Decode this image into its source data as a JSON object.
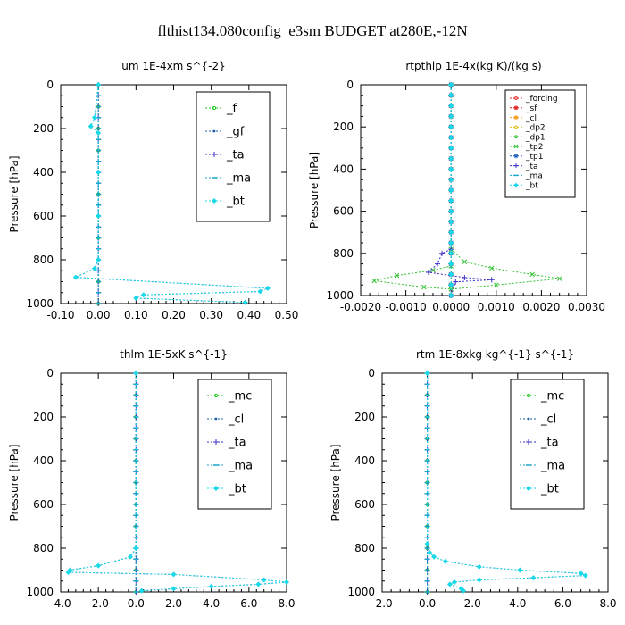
{
  "suptitle": "flthist134.080config_e3sm  BUDGET at280E,-12N",
  "chart_data": [
    {
      "type": "line",
      "title": "um  1E-4xm s^{-2}",
      "ylabel": "Pressure [hPa]",
      "xlim": [
        -0.1,
        0.5
      ],
      "ylim": [
        1000,
        0
      ],
      "xticks": [
        "-0.10",
        "0.00",
        "0.10",
        "0.20",
        "0.30",
        "0.40",
        "0.50"
      ],
      "yticks": [
        "0",
        "200",
        "400",
        "600",
        "800",
        "1000"
      ],
      "legend_size": "large",
      "series": [
        {
          "name": "_f",
          "color": "#22c922",
          "marker": "circle",
          "points": [
            [
              0,
              0
            ],
            [
              0,
              100
            ],
            [
              0,
              200
            ],
            [
              0,
              300
            ],
            [
              0,
              400
            ],
            [
              0,
              500
            ],
            [
              0,
              600
            ],
            [
              0,
              700
            ],
            [
              0,
              800
            ],
            [
              0,
              900
            ],
            [
              0,
              1000
            ]
          ]
        },
        {
          "name": "_gf",
          "color": "#1a5fa8",
          "marker": "dot",
          "points": [
            [
              0,
              0
            ],
            [
              -0.01,
              150
            ],
            [
              -0.02,
              190
            ],
            [
              0,
              220
            ],
            [
              0,
              400
            ],
            [
              0,
              600
            ],
            [
              0,
              800
            ],
            [
              -0.01,
              840
            ],
            [
              -0.06,
              880
            ],
            [
              0.45,
              930
            ],
            [
              0.43,
              945
            ],
            [
              0.12,
              960
            ],
            [
              0.1,
              975
            ],
            [
              0.39,
              995
            ]
          ]
        },
        {
          "name": "_ta",
          "color": "#3a2fc8",
          "marker": "plus",
          "points": [
            [
              0,
              0
            ],
            [
              0,
              1000
            ]
          ]
        },
        {
          "name": "_ma",
          "color": "#17a6c9",
          "marker": "dash",
          "points": [
            [
              0,
              0
            ],
            [
              0,
              1000
            ]
          ]
        },
        {
          "name": "_bt",
          "color": "#19d8e8",
          "marker": "diamond",
          "points": [
            [
              0,
              0
            ],
            [
              -0.01,
              150
            ],
            [
              -0.02,
              190
            ],
            [
              0,
              220
            ],
            [
              0,
              400
            ],
            [
              0,
              600
            ],
            [
              0,
              800
            ],
            [
              -0.01,
              840
            ],
            [
              -0.06,
              880
            ],
            [
              0.45,
              930
            ],
            [
              0.43,
              945
            ],
            [
              0.12,
              960
            ],
            [
              0.1,
              975
            ],
            [
              0.39,
              995
            ]
          ]
        }
      ]
    },
    {
      "type": "line",
      "title": "rtpthlp  1E-4x(kg K)/(kg s)",
      "ylabel": "Pressure [hPa]",
      "xlim": [
        -0.002,
        0.003
      ],
      "ylim": [
        1000,
        0
      ],
      "xticks": [
        "-0.0020",
        "-0.0010",
        "0.0000",
        "0.0010",
        "0.0020",
        "0.0030"
      ],
      "yticks": [
        "0",
        "200",
        "400",
        "600",
        "800",
        "1000"
      ],
      "legend_size": "small",
      "series": [
        {
          "name": "_forcing",
          "color": "#e02020",
          "marker": "circle",
          "points": [
            [
              0,
              0
            ],
            [
              0,
              1000
            ]
          ]
        },
        {
          "name": "_sf",
          "color": "#e02020",
          "marker": "star",
          "points": [
            [
              0,
              0
            ],
            [
              0,
              1000
            ]
          ]
        },
        {
          "name": "_cl",
          "color": "#f0a020",
          "marker": "star",
          "points": [
            [
              0,
              0
            ],
            [
              0,
              1000
            ]
          ]
        },
        {
          "name": "_dp2",
          "color": "#e0c020",
          "marker": "circle",
          "points": [
            [
              0,
              0
            ],
            [
              0,
              1000
            ]
          ]
        },
        {
          "name": "_dp1",
          "color": "#30c030",
          "marker": "circle",
          "points": [
            [
              0,
              0
            ],
            [
              0,
              1000
            ]
          ]
        },
        {
          "name": "_tp2",
          "color": "#30c030",
          "marker": "cross",
          "points": [
            [
              0,
              0
            ],
            [
              0,
              780
            ],
            [
              0.0003,
              840
            ],
            [
              0.0009,
              870
            ],
            [
              0.0018,
              900
            ],
            [
              0.0024,
              920
            ],
            [
              0.001,
              950
            ],
            [
              0,
              970
            ],
            [
              -0.0006,
              960
            ],
            [
              -0.0017,
              930
            ],
            [
              -0.0012,
              905
            ],
            [
              -0.0004,
              880
            ],
            [
              0,
              860
            ]
          ]
        },
        {
          "name": "_tp1",
          "color": "#2060c0",
          "marker": "star",
          "points": [
            [
              0,
              0
            ],
            [
              0,
              1000
            ]
          ]
        },
        {
          "name": "_ta",
          "color": "#3a2fc8",
          "marker": "plus",
          "points": [
            [
              0,
              0
            ],
            [
              0,
              780
            ],
            [
              -0.0002,
              800
            ],
            [
              -0.0003,
              850
            ],
            [
              -0.0005,
              890
            ],
            [
              0.0003,
              915
            ],
            [
              0.0009,
              925
            ],
            [
              0.0001,
              935
            ],
            [
              0,
              1000
            ]
          ]
        },
        {
          "name": "_ma",
          "color": "#17a6c9",
          "marker": "dash",
          "points": [
            [
              0,
              0
            ],
            [
              0,
              1000
            ]
          ]
        },
        {
          "name": "_bt",
          "color": "#19d8e8",
          "marker": "diamond",
          "points": [
            [
              0,
              0
            ],
            [
              0,
              1000
            ]
          ]
        }
      ]
    },
    {
      "type": "line",
      "title": "thlm  1E-5xK s^{-1}",
      "ylabel": "Pressure [hPa]",
      "xlim": [
        -4.0,
        8.0
      ],
      "ylim": [
        1000,
        0
      ],
      "xticks": [
        "-4.0",
        "-2.0",
        "0.0",
        "2.0",
        "4.0",
        "6.0",
        "8.0"
      ],
      "yticks": [
        "0",
        "200",
        "400",
        "600",
        "800",
        "1000"
      ],
      "legend_size": "large",
      "series": [
        {
          "name": "_mc",
          "color": "#22c922",
          "marker": "circle",
          "points": [
            [
              0,
              0
            ],
            [
              0,
              100
            ],
            [
              0,
              200
            ],
            [
              0,
              300
            ],
            [
              0,
              400
            ],
            [
              0,
              500
            ],
            [
              0,
              600
            ],
            [
              0,
              700
            ],
            [
              0,
              800
            ],
            [
              0,
              900
            ],
            [
              0,
              1000
            ]
          ]
        },
        {
          "name": "_cl",
          "color": "#1a5fa8",
          "marker": "dot",
          "points": [
            [
              0,
              0
            ],
            [
              0,
              800
            ],
            [
              -0.3,
              840
            ],
            [
              -2.0,
              880
            ],
            [
              -3.5,
              900
            ],
            [
              -3.6,
              910
            ],
            [
              2.0,
              920
            ],
            [
              6.8,
              945
            ],
            [
              8.0,
              955
            ],
            [
              6.5,
              965
            ],
            [
              4.0,
              975
            ],
            [
              2.0,
              985
            ],
            [
              0.3,
              995
            ]
          ]
        },
        {
          "name": "_ta",
          "color": "#3a2fc8",
          "marker": "plus",
          "points": [
            [
              0,
              0
            ],
            [
              0,
              1000
            ]
          ]
        },
        {
          "name": "_ma",
          "color": "#17a6c9",
          "marker": "dash",
          "points": [
            [
              0,
              0
            ],
            [
              0,
              1000
            ]
          ]
        },
        {
          "name": "_bt",
          "color": "#19d8e8",
          "marker": "diamond",
          "points": [
            [
              0,
              0
            ],
            [
              0,
              800
            ],
            [
              -0.3,
              840
            ],
            [
              -2.0,
              880
            ],
            [
              -3.5,
              900
            ],
            [
              -3.6,
              910
            ],
            [
              2.0,
              920
            ],
            [
              6.8,
              945
            ],
            [
              8.0,
              955
            ],
            [
              6.5,
              965
            ],
            [
              4.0,
              975
            ],
            [
              2.0,
              985
            ],
            [
              0.3,
              995
            ]
          ]
        }
      ]
    },
    {
      "type": "line",
      "title": "rtm  1E-8xkg kg^{-1} s^{-1}",
      "ylabel": "Pressure [hPa]",
      "xlim": [
        -2.0,
        8.0
      ],
      "ylim": [
        1000,
        0
      ],
      "xticks": [
        "-2.0",
        "0.0",
        "2.0",
        "4.0",
        "6.0",
        "8.0"
      ],
      "yticks": [
        "0",
        "200",
        "400",
        "600",
        "800",
        "1000"
      ],
      "legend_size": "large",
      "series": [
        {
          "name": "_mc",
          "color": "#22c922",
          "marker": "circle",
          "points": [
            [
              0,
              0
            ],
            [
              0,
              100
            ],
            [
              0,
              200
            ],
            [
              0,
              300
            ],
            [
              0,
              400
            ],
            [
              0,
              500
            ],
            [
              0,
              600
            ],
            [
              0,
              700
            ],
            [
              0,
              800
            ],
            [
              0,
              900
            ],
            [
              0,
              1000
            ]
          ]
        },
        {
          "name": "_cl",
          "color": "#1a5fa8",
          "marker": "dot",
          "points": [
            [
              0,
              0
            ],
            [
              0,
              780
            ],
            [
              0.1,
              820
            ],
            [
              0.3,
              840
            ],
            [
              0.8,
              860
            ],
            [
              2.3,
              885
            ],
            [
              4.1,
              900
            ],
            [
              6.8,
              915
            ],
            [
              7.0,
              925
            ],
            [
              4.7,
              935
            ],
            [
              2.3,
              945
            ],
            [
              1.2,
              955
            ],
            [
              1.0,
              965
            ],
            [
              1.5,
              985
            ],
            [
              1.6,
              995
            ]
          ]
        },
        {
          "name": "_ta",
          "color": "#3a2fc8",
          "marker": "plus",
          "points": [
            [
              0,
              0
            ],
            [
              0,
              1000
            ]
          ]
        },
        {
          "name": "_ma",
          "color": "#17a6c9",
          "marker": "dash",
          "points": [
            [
              0,
              0
            ],
            [
              0,
              1000
            ]
          ]
        },
        {
          "name": "_bt",
          "color": "#19d8e8",
          "marker": "diamond",
          "points": [
            [
              0,
              0
            ],
            [
              0,
              780
            ],
            [
              0.1,
              820
            ],
            [
              0.3,
              840
            ],
            [
              0.8,
              860
            ],
            [
              2.3,
              885
            ],
            [
              4.1,
              900
            ],
            [
              6.8,
              915
            ],
            [
              7.0,
              925
            ],
            [
              4.7,
              935
            ],
            [
              2.3,
              945
            ],
            [
              1.2,
              955
            ],
            [
              1.0,
              965
            ],
            [
              1.5,
              985
            ],
            [
              1.6,
              995
            ]
          ]
        }
      ]
    }
  ]
}
